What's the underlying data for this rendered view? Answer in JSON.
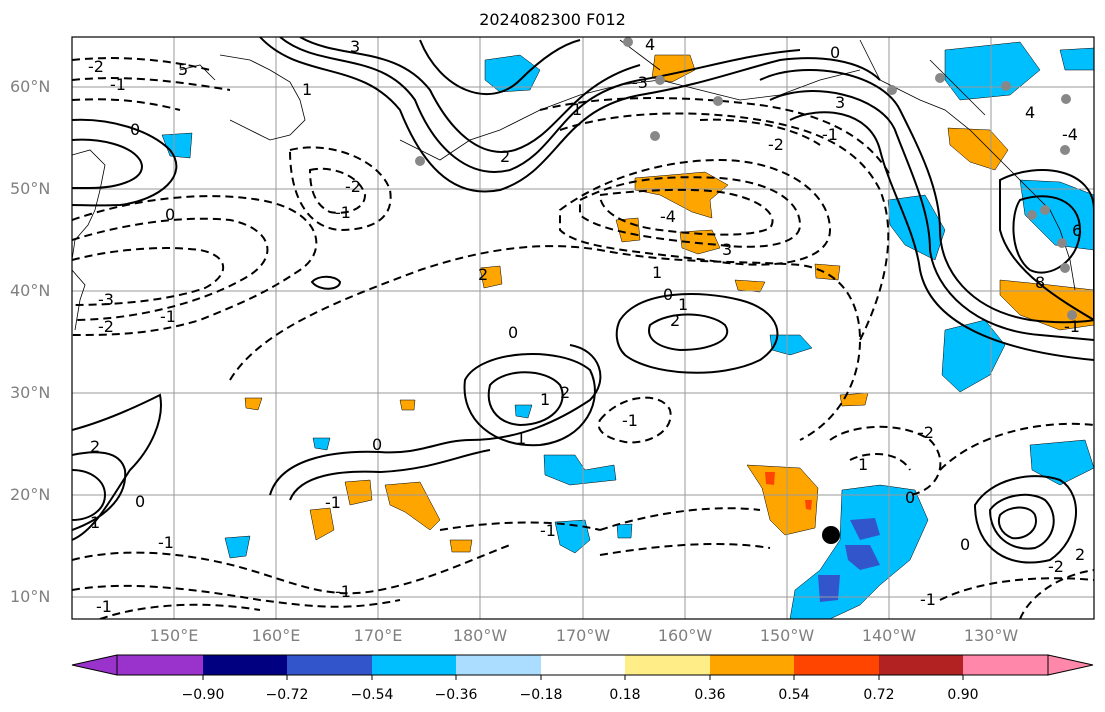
{
  "title": "2024082300 F012",
  "map": {
    "lat_labels": [
      "60°N",
      "50°N",
      "40°N",
      "30°N",
      "20°N",
      "10°N"
    ],
    "lon_labels": [
      "150°E",
      "160°E",
      "170°E",
      "180°W",
      "170°W",
      "160°W",
      "150°W",
      "140°W",
      "130°W"
    ],
    "contour_labels": [
      "-2",
      "-1",
      "0",
      "3",
      "4",
      "5",
      "1",
      "0",
      "-3",
      "-2",
      "-1",
      "0",
      "1",
      "2",
      "-2",
      "-1",
      "-3",
      "-2",
      "-1",
      "-4",
      "3",
      "2",
      "1",
      "0",
      "1",
      "2",
      "0",
      "1",
      "2",
      "1",
      "-1",
      "0",
      "-1",
      "-2",
      "1",
      "0",
      "-1",
      "2",
      "1",
      "-1",
      "0",
      "3",
      "4",
      "-4",
      "8",
      "6",
      "-1",
      "2",
      "-2",
      "0",
      "-1",
      "-1",
      "-1"
    ],
    "storm_marker": "filled-circle",
    "station_markers": "grey-dots"
  },
  "colorbar": {
    "labels": [
      "−0.90",
      "−0.72",
      "−0.54",
      "−0.36",
      "−0.18",
      "0.18",
      "0.36",
      "0.54",
      "0.72",
      "0.90"
    ],
    "colors": [
      "#9933cc",
      "#000080",
      "#3355cc",
      "#00bfff",
      "#aaddff",
      "#ffffff",
      "#ffee88",
      "#ffa500",
      "#ff4500",
      "#b22222",
      "#ff88aa"
    ]
  }
}
